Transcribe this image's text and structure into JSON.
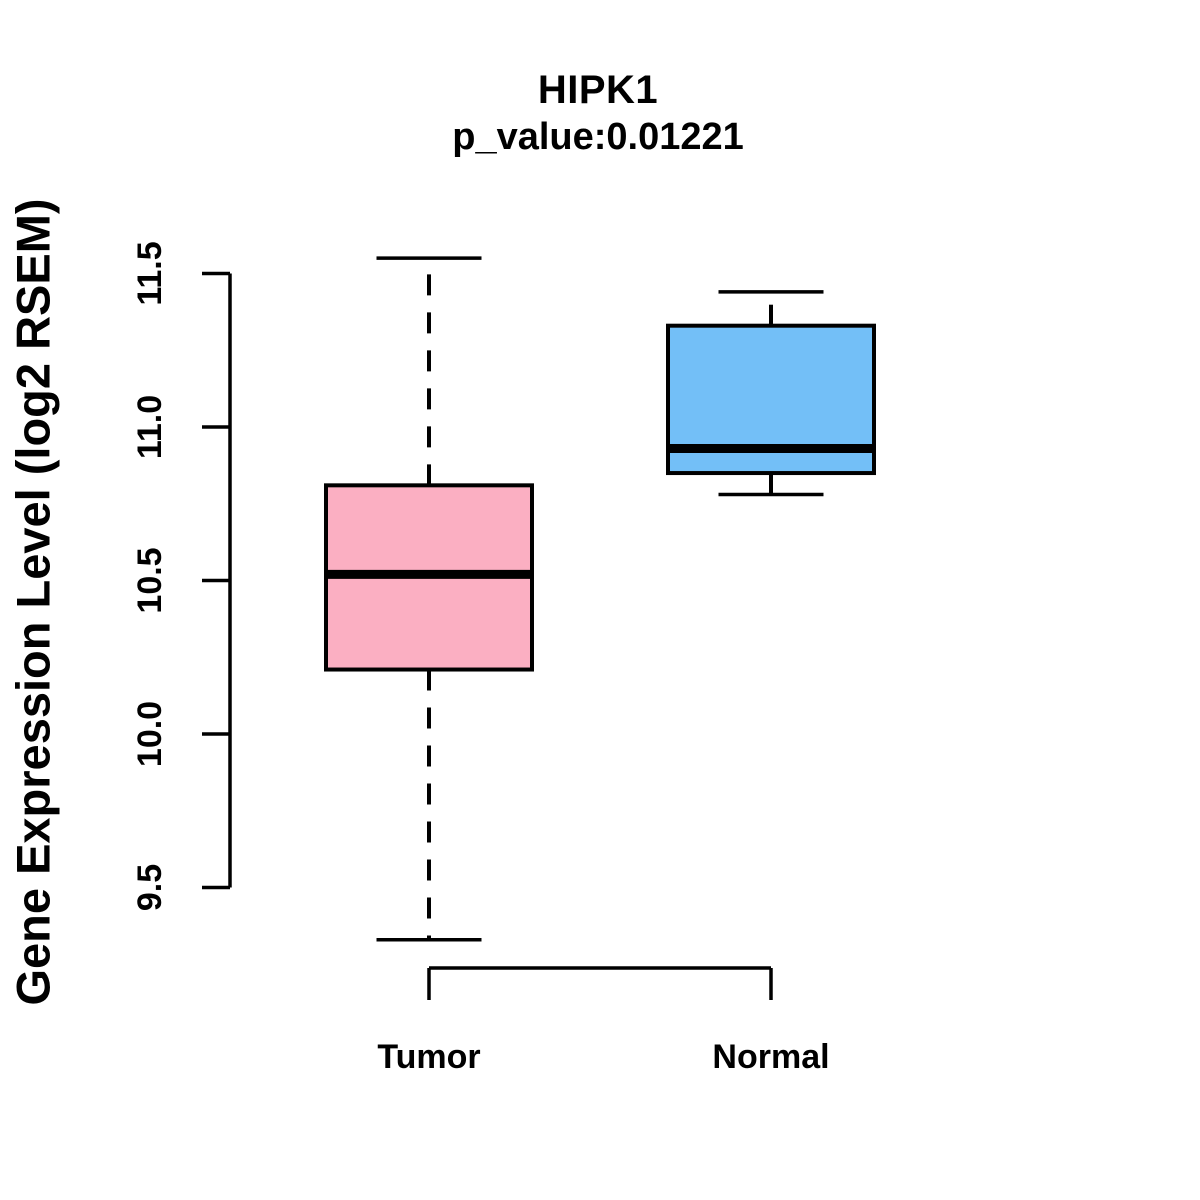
{
  "figure": {
    "title": "HIPK1",
    "subtitle": "p_value:0.01221",
    "y_axis_label": "Gene Expression Level (log2 RSEM)"
  },
  "colors": {
    "tumor_fill": "#FBAFC2",
    "normal_fill": "#73BFF7",
    "stroke": "#000000",
    "background": "#FFFFFF"
  },
  "chart_data": {
    "type": "boxplot",
    "title": "HIPK1",
    "subtitle": "p_value:0.01221",
    "ylabel": "Gene Expression Level (log2 RSEM)",
    "xlabel": "",
    "categories": [
      "Tumor",
      "Normal"
    ],
    "yticks": [
      9.5,
      10.0,
      10.5,
      11.0,
      11.5
    ],
    "ylim": [
      9.25,
      11.6
    ],
    "grid": false,
    "legend": "none",
    "series": [
      {
        "name": "Tumor",
        "lower_whisker": 9.33,
        "q1": 10.21,
        "median": 10.52,
        "q3": 10.81,
        "upper_whisker": 11.55,
        "fill": "#FBAFC2"
      },
      {
        "name": "Normal",
        "lower_whisker": 10.78,
        "q1": 10.85,
        "median": 10.93,
        "q3": 11.33,
        "upper_whisker": 11.44,
        "fill": "#73BFF7"
      }
    ]
  }
}
